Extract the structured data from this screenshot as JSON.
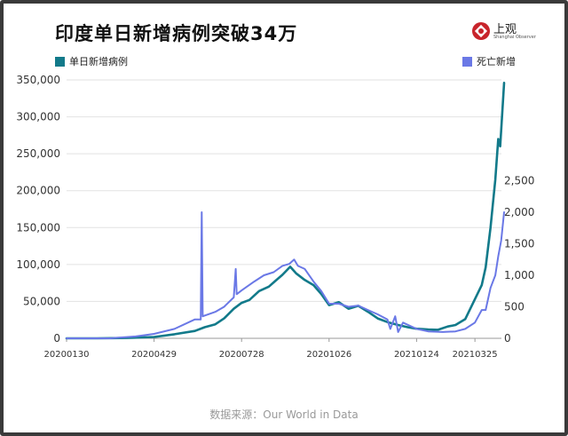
{
  "header": {
    "title": "印度单日新增病例突破34万",
    "logo_text": "上观",
    "logo_sub": "Shanghai Observer"
  },
  "source": "数据来源：Our World in Data",
  "colors": {
    "cases": "#127a8a",
    "deaths": "#6a78e6"
  },
  "chart_data": {
    "type": "line",
    "title": "印度单日新增病例突破34万",
    "legend": [
      "单日新增病例",
      "死亡新增"
    ],
    "legend_position": "top",
    "x_tick_labels": [
      "20200130",
      "20200429",
      "20200728",
      "20201026",
      "20210124",
      "20210325"
    ],
    "x_range": [
      "2020-01-30",
      "2021-04-24"
    ],
    "y_left": {
      "range": [
        0,
        350000
      ],
      "ticks": [
        "0",
        "50,000",
        "100,000",
        "150,000",
        "200,000",
        "250,000",
        "300,000",
        "350,000"
      ]
    },
    "y_right": {
      "range": [
        0,
        4100
      ],
      "ticks": [
        "0",
        "500",
        "1,000",
        "1,500",
        "2,000",
        "2,500"
      ]
    },
    "grid": true,
    "series": [
      {
        "name": "单日新增病例",
        "axis": "left",
        "points": [
          [
            "2020-01-30",
            0
          ],
          [
            "2020-03-01",
            0
          ],
          [
            "2020-04-01",
            500
          ],
          [
            "2020-04-29",
            1800
          ],
          [
            "2020-05-20",
            5500
          ],
          [
            "2020-06-10",
            10000
          ],
          [
            "2020-06-20",
            15000
          ],
          [
            "2020-07-01",
            19000
          ],
          [
            "2020-07-10",
            27000
          ],
          [
            "2020-07-20",
            40000
          ],
          [
            "2020-07-28",
            48000
          ],
          [
            "2020-08-05",
            52000
          ],
          [
            "2020-08-15",
            64000
          ],
          [
            "2020-08-25",
            70000
          ],
          [
            "2020-09-01",
            78000
          ],
          [
            "2020-09-08",
            86000
          ],
          [
            "2020-09-16",
            97000
          ],
          [
            "2020-09-22",
            88000
          ],
          [
            "2020-10-01",
            79000
          ],
          [
            "2020-10-10",
            72000
          ],
          [
            "2020-10-18",
            60000
          ],
          [
            "2020-10-26",
            45000
          ],
          [
            "2020-11-05",
            49000
          ],
          [
            "2020-11-15",
            40000
          ],
          [
            "2020-11-25",
            44000
          ],
          [
            "2020-12-05",
            36000
          ],
          [
            "2020-12-15",
            27000
          ],
          [
            "2020-12-25",
            22000
          ],
          [
            "2021-01-05",
            18000
          ],
          [
            "2021-01-15",
            15000
          ],
          [
            "2021-01-24",
            13000
          ],
          [
            "2021-02-05",
            12000
          ],
          [
            "2021-02-15",
            11500
          ],
          [
            "2021-02-25",
            16000
          ],
          [
            "2021-03-05",
            18000
          ],
          [
            "2021-03-15",
            26000
          ],
          [
            "2021-03-25",
            53000
          ],
          [
            "2021-04-01",
            72000
          ],
          [
            "2021-04-05",
            96000
          ],
          [
            "2021-04-10",
            150000
          ],
          [
            "2021-04-15",
            215000
          ],
          [
            "2021-04-18",
            270000
          ],
          [
            "2021-04-20",
            260000
          ],
          [
            "2021-04-24",
            346000
          ]
        ]
      },
      {
        "name": "死亡新增",
        "axis": "right",
        "points": [
          [
            "2020-01-30",
            0
          ],
          [
            "2020-03-15",
            0
          ],
          [
            "2020-04-10",
            30
          ],
          [
            "2020-04-29",
            70
          ],
          [
            "2020-05-20",
            150
          ],
          [
            "2020-06-10",
            300
          ],
          [
            "2020-06-16",
            300
          ],
          [
            "2020-06-17",
            2000
          ],
          [
            "2020-06-18",
            350
          ],
          [
            "2020-07-01",
            420
          ],
          [
            "2020-07-10",
            500
          ],
          [
            "2020-07-20",
            650
          ],
          [
            "2020-07-22",
            1100
          ],
          [
            "2020-07-23",
            700
          ],
          [
            "2020-07-28",
            760
          ],
          [
            "2020-08-10",
            900
          ],
          [
            "2020-08-20",
            1000
          ],
          [
            "2020-08-30",
            1050
          ],
          [
            "2020-09-08",
            1150
          ],
          [
            "2020-09-15",
            1180
          ],
          [
            "2020-09-20",
            1250
          ],
          [
            "2020-09-24",
            1150
          ],
          [
            "2020-10-01",
            1100
          ],
          [
            "2020-10-10",
            900
          ],
          [
            "2020-10-18",
            750
          ],
          [
            "2020-10-26",
            550
          ],
          [
            "2020-11-05",
            550
          ],
          [
            "2020-11-15",
            500
          ],
          [
            "2020-11-25",
            520
          ],
          [
            "2020-12-05",
            450
          ],
          [
            "2020-12-15",
            380
          ],
          [
            "2020-12-25",
            300
          ],
          [
            "2020-12-28",
            150
          ],
          [
            "2021-01-02",
            350
          ],
          [
            "2021-01-05",
            100
          ],
          [
            "2021-01-10",
            250
          ],
          [
            "2021-01-24",
            150
          ],
          [
            "2021-02-05",
            110
          ],
          [
            "2021-02-20",
            100
          ],
          [
            "2021-03-05",
            110
          ],
          [
            "2021-03-15",
            150
          ],
          [
            "2021-03-25",
            250
          ],
          [
            "2021-04-01",
            450
          ],
          [
            "2021-04-05",
            450
          ],
          [
            "2021-04-10",
            800
          ],
          [
            "2021-04-15",
            1000
          ],
          [
            "2021-04-18",
            1300
          ],
          [
            "2021-04-21",
            1550
          ],
          [
            "2021-04-24",
            2000
          ]
        ]
      }
    ]
  }
}
